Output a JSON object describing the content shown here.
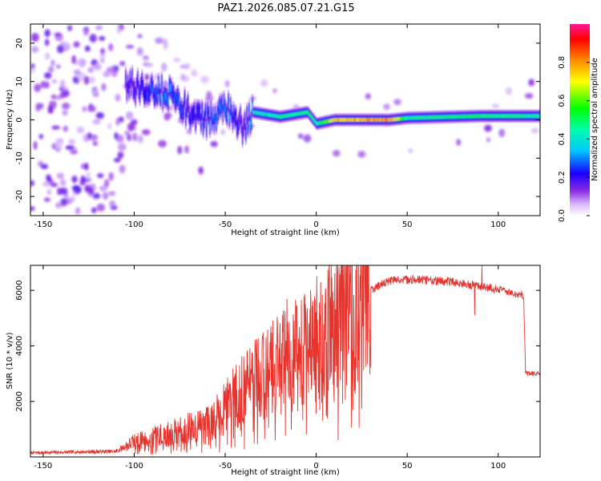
{
  "title": "PAZ1.2026.085.07.21.G15",
  "colors": {
    "background": "#ffffff",
    "axis": "#000000",
    "snr_line": "#e8332d"
  },
  "chart_data": [
    {
      "id": "spectrogram",
      "type": "heatmap",
      "xlabel": "Height of straight line (km)",
      "ylabel": "Frequency (Hz)",
      "xlim": [
        -157,
        123
      ],
      "ylim": [
        -25,
        25
      ],
      "x_ticks": [
        -150,
        -100,
        -50,
        0,
        50,
        100
      ],
      "y_ticks": [
        -20,
        -10,
        0,
        10,
        20
      ],
      "colorbar": {
        "label": "Normalized spectral amplitude",
        "range": [
          0,
          1
        ],
        "ticks": [
          0.0,
          0.2,
          0.4,
          0.6,
          0.8
        ],
        "colormap": [
          "#ffffff",
          "#8a2be2",
          "#0000ff",
          "#00ffff",
          "#00ff00",
          "#ffff00",
          "#ff0000",
          "#ff1493"
        ]
      },
      "ridge": [
        {
          "x": -105,
          "f": 9,
          "amp": 0.15
        },
        {
          "x": -90,
          "f": 8,
          "amp": 0.25
        },
        {
          "x": -80,
          "f": 6,
          "amp": 0.3
        },
        {
          "x": -70,
          "f": 2,
          "amp": 0.2
        },
        {
          "x": -60,
          "f": 0,
          "amp": 0.25
        },
        {
          "x": -50,
          "f": 3,
          "amp": 0.3
        },
        {
          "x": -40,
          "f": -2,
          "amp": 0.15
        },
        {
          "x": -35,
          "f": 2,
          "amp": 0.4
        },
        {
          "x": -20,
          "f": 0.8,
          "amp": 0.45
        },
        {
          "x": -5,
          "f": 2,
          "amp": 0.5
        },
        {
          "x": 0,
          "f": -1,
          "amp": 0.45
        },
        {
          "x": 10,
          "f": 0,
          "amp": 0.75
        },
        {
          "x": 40,
          "f": 0,
          "amp": 0.8
        },
        {
          "x": 50,
          "f": 0.5,
          "amp": 0.45
        },
        {
          "x": 90,
          "f": 1,
          "amp": 0.5
        },
        {
          "x": 123,
          "f": 1,
          "amp": 0.45
        }
      ]
    },
    {
      "id": "snr",
      "type": "line",
      "xlabel": "Height of straight line (km)",
      "ylabel": "SNR (10 * v/v)",
      "xlim": [
        -157,
        123
      ],
      "ylim": [
        0,
        6900
      ],
      "x_ticks": [
        -150,
        -100,
        -50,
        0,
        50,
        100
      ],
      "y_ticks": [
        2000,
        4000,
        6000
      ],
      "envelope": [
        {
          "x": -157,
          "y": 150
        },
        {
          "x": -110,
          "y": 200
        },
        {
          "x": -100,
          "y": 550
        },
        {
          "x": -80,
          "y": 850
        },
        {
          "x": -60,
          "y": 1200
        },
        {
          "x": -50,
          "y": 1750
        },
        {
          "x": -40,
          "y": 2500
        },
        {
          "x": -30,
          "y": 2900
        },
        {
          "x": -20,
          "y": 3400
        },
        {
          "x": -10,
          "y": 3800
        },
        {
          "x": 0,
          "y": 4200
        },
        {
          "x": 10,
          "y": 4700
        },
        {
          "x": 20,
          "y": 5300
        },
        {
          "x": 30,
          "y": 6000
        },
        {
          "x": 40,
          "y": 6350
        },
        {
          "x": 55,
          "y": 6400
        },
        {
          "x": 75,
          "y": 6300
        },
        {
          "x": 95,
          "y": 6100
        },
        {
          "x": 105,
          "y": 5950
        },
        {
          "x": 114,
          "y": 5800
        },
        {
          "x": 115,
          "y": 3000
        },
        {
          "x": 123,
          "y": 3000
        }
      ],
      "features": [
        {
          "x": 0,
          "y": 1550
        },
        {
          "x": 91,
          "y": 6900
        },
        {
          "x": 87,
          "y": 5100
        }
      ]
    }
  ]
}
